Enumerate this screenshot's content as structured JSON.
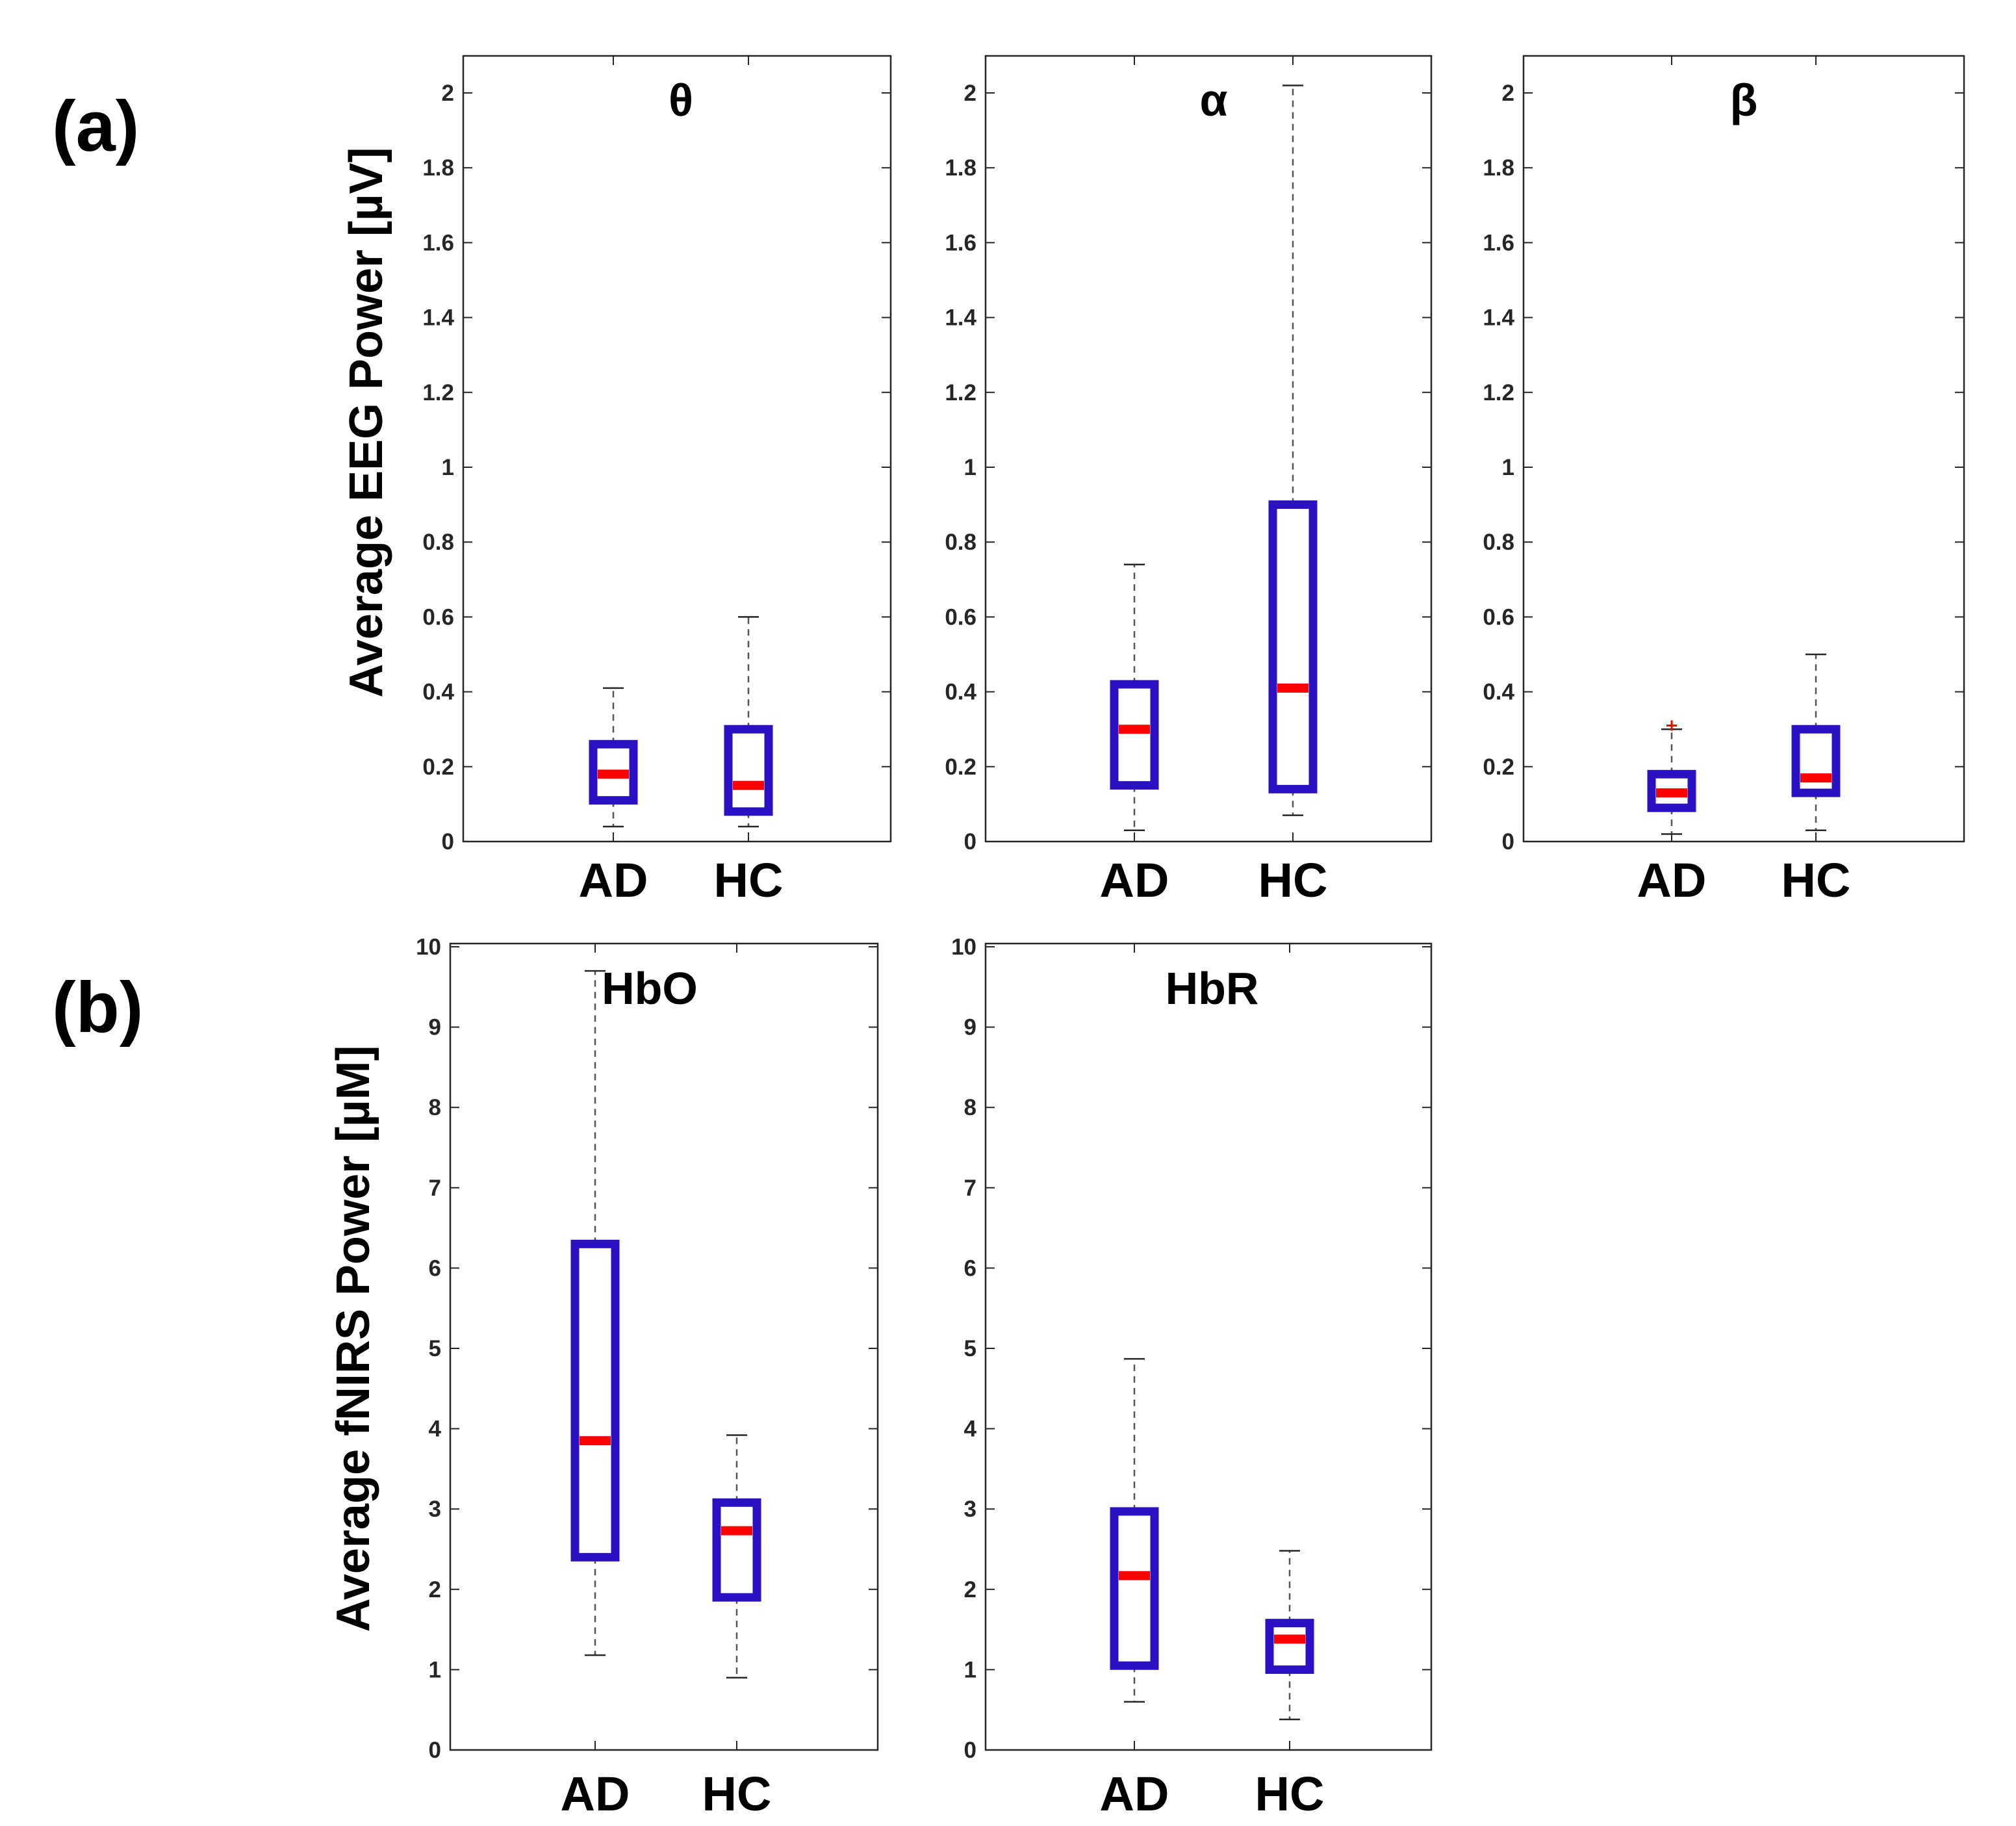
{
  "figure": {
    "panel_labels": [
      "(a)",
      "(b)"
    ],
    "colors": {
      "box": "#2b11c4",
      "median": "#ff0000",
      "whisker": "#555555",
      "axis": "#262626",
      "outlier": "#ff0000"
    }
  },
  "chart_data": [
    {
      "type": "boxplot",
      "panel": "(a)",
      "title": "θ",
      "ylabel": "Average EEG Power [µV]",
      "ylim": [
        0,
        2.1
      ],
      "yticks": [
        "0",
        "0.2",
        "0.4",
        "0.6",
        "0.8",
        "1",
        "1.2",
        "1.4",
        "1.6",
        "1.8",
        "2"
      ],
      "categories": [
        "AD",
        "HC"
      ],
      "boxes": [
        {
          "q1": 0.11,
          "median": 0.18,
          "q3": 0.26,
          "whisker_low": 0.04,
          "whisker_high": 0.41,
          "outliers": []
        },
        {
          "q1": 0.08,
          "median": 0.15,
          "q3": 0.3,
          "whisker_low": 0.04,
          "whisker_high": 0.6,
          "outliers": []
        }
      ]
    },
    {
      "type": "boxplot",
      "panel": "(a)",
      "title": "α",
      "ylabel": "",
      "ylim": [
        0,
        2.1
      ],
      "yticks": [
        "0",
        "0.2",
        "0.4",
        "0.6",
        "0.8",
        "1",
        "1.2",
        "1.4",
        "1.6",
        "1.8",
        "2"
      ],
      "categories": [
        "AD",
        "HC"
      ],
      "boxes": [
        {
          "q1": 0.15,
          "median": 0.3,
          "q3": 0.42,
          "whisker_low": 0.03,
          "whisker_high": 0.74,
          "outliers": []
        },
        {
          "q1": 0.14,
          "median": 0.41,
          "q3": 0.9,
          "whisker_low": 0.07,
          "whisker_high": 2.02,
          "outliers": []
        }
      ]
    },
    {
      "type": "boxplot",
      "panel": "(a)",
      "title": "β",
      "ylabel": "",
      "ylim": [
        0,
        2.1
      ],
      "yticks": [
        "0",
        "0.2",
        "0.4",
        "0.6",
        "0.8",
        "1",
        "1.2",
        "1.4",
        "1.6",
        "1.8",
        "2"
      ],
      "categories": [
        "AD",
        "HC"
      ],
      "boxes": [
        {
          "q1": 0.09,
          "median": 0.13,
          "q3": 0.18,
          "whisker_low": 0.02,
          "whisker_high": 0.3,
          "outliers": [
            0.31
          ]
        },
        {
          "q1": 0.13,
          "median": 0.17,
          "q3": 0.3,
          "whisker_low": 0.03,
          "whisker_high": 0.5,
          "outliers": []
        }
      ]
    },
    {
      "type": "boxplot",
      "panel": "(b)",
      "title": "HbO",
      "ylabel": "Average fNIRS Power [µM]",
      "ylim": [
        0,
        10
      ],
      "yticks": [
        "0",
        "1",
        "2",
        "3",
        "4",
        "5",
        "6",
        "7",
        "8",
        "9",
        "10"
      ],
      "categories": [
        "AD",
        "HC"
      ],
      "boxes": [
        {
          "q1": 2.4,
          "median": 3.85,
          "q3": 6.3,
          "whisker_low": 1.18,
          "whisker_high": 9.7,
          "outliers": []
        },
        {
          "q1": 1.9,
          "median": 2.73,
          "q3": 3.08,
          "whisker_low": 0.9,
          "whisker_high": 3.92,
          "outliers": []
        }
      ]
    },
    {
      "type": "boxplot",
      "panel": "(b)",
      "title": "HbR",
      "ylabel": "",
      "ylim": [
        0,
        10
      ],
      "yticks": [
        "0",
        "1",
        "2",
        "3",
        "4",
        "5",
        "6",
        "7",
        "8",
        "9",
        "10"
      ],
      "categories": [
        "AD",
        "HC"
      ],
      "boxes": [
        {
          "q1": 1.05,
          "median": 2.17,
          "q3": 2.97,
          "whisker_low": 0.6,
          "whisker_high": 4.87,
          "outliers": []
        },
        {
          "q1": 1.0,
          "median": 1.38,
          "q3": 1.58,
          "whisker_low": 0.38,
          "whisker_high": 2.48,
          "outliers": []
        }
      ]
    }
  ]
}
